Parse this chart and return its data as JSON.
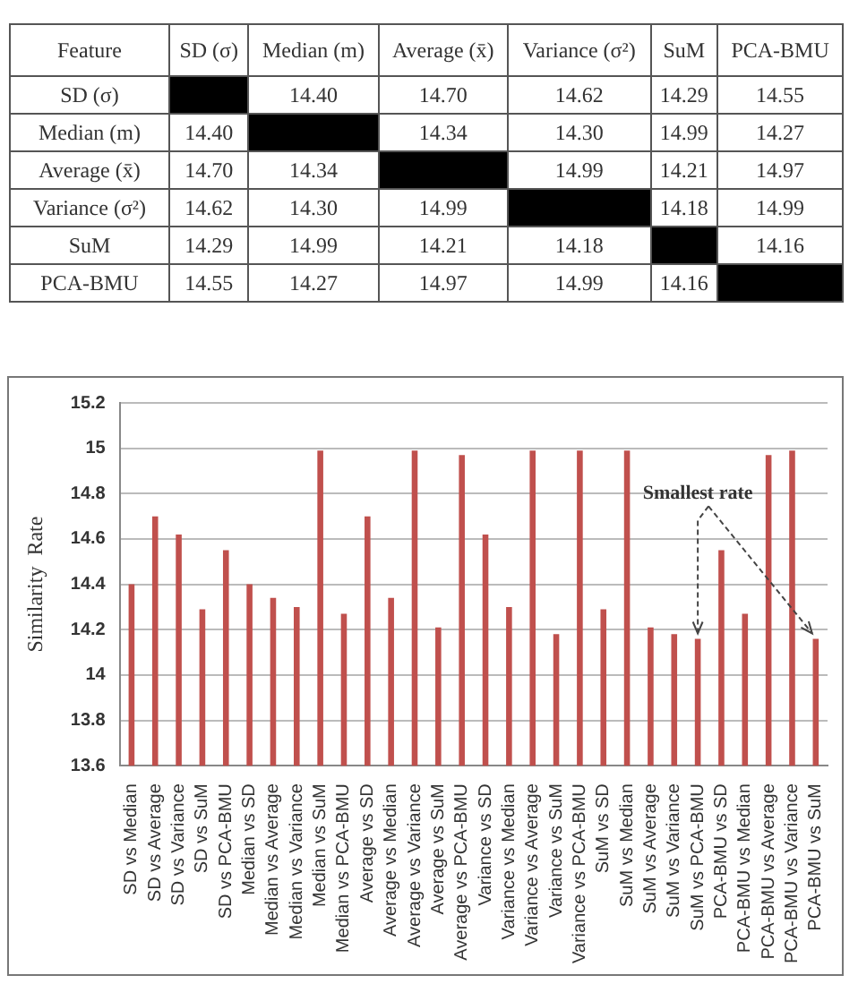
{
  "chart_data": [
    {
      "type": "heatmap",
      "ylabel": "Feature",
      "categories": [
        "SD (σ)",
        "Median (m)",
        "Average (x̄)",
        "Variance (σ²)",
        "SuM",
        "PCA-BMU"
      ],
      "y_categories": [
        "SD (σ)",
        "Median (m)",
        "Average (x̄)",
        "Variance (σ²)",
        "SuM",
        "PCA-BMU"
      ],
      "cells": [
        [
          null,
          14.4,
          14.7,
          14.62,
          14.29,
          14.55
        ],
        [
          14.4,
          null,
          14.34,
          14.3,
          14.99,
          14.27
        ],
        [
          14.7,
          14.34,
          null,
          14.99,
          14.21,
          14.97
        ],
        [
          14.62,
          14.3,
          14.99,
          null,
          14.18,
          14.99
        ],
        [
          14.29,
          14.99,
          14.21,
          14.18,
          null,
          14.16
        ],
        [
          14.55,
          14.27,
          14.97,
          14.99,
          14.16,
          null
        ]
      ],
      "cell_labels": [
        [
          null,
          "14.40",
          "14.70",
          "14.62",
          "14.29",
          "14.55"
        ],
        [
          "14.40",
          null,
          "14.34",
          "14.30",
          "14.99",
          "14.27"
        ],
        [
          "14.70",
          "14.34",
          null,
          "14.99",
          "14.21",
          "14.97"
        ],
        [
          "14.62",
          "14.30",
          "14.99",
          null,
          "14.18",
          "14.99"
        ],
        [
          "14.29",
          "14.99",
          "14.21",
          "14.18",
          null,
          "14.16"
        ],
        [
          "14.55",
          "14.27",
          "14.97",
          "14.99",
          "14.16",
          null
        ]
      ]
    },
    {
      "type": "bar",
      "ylabel": "Similarity  Rate",
      "color": "#c0504d",
      "categories": [
        "SD vs Median",
        "SD vs Average",
        "SD vs Variance",
        "SD vs SuM",
        "SD vs PCA-BMU",
        "Median vs SD",
        "Median vs Average",
        "Median vs Variance",
        "Median vs SuM",
        "Median vs PCA-BMU",
        "Average vs SD",
        "Average vs Median",
        "Average vs Variance",
        "Average vs SuM",
        "Average vs PCA-BMU",
        "Variance vs SD",
        "Variance vs Median",
        "Variance vs Average",
        "Variance vs SuM",
        "Variance vs PCA-BMU",
        "SuM vs SD",
        "SuM vs Median",
        "SuM vs Average",
        "SuM vs Variance",
        "SuM vs PCA-BMU",
        "PCA-BMU vs SD",
        "PCA-BMU vs Median",
        "PCA-BMU vs Average",
        "PCA-BMU vs Variance",
        "PCA-BMU vs SuM"
      ],
      "values": [
        14.4,
        14.7,
        14.62,
        14.29,
        14.55,
        14.4,
        14.34,
        14.3,
        14.99,
        14.27,
        14.7,
        14.34,
        14.99,
        14.21,
        14.97,
        14.62,
        14.3,
        14.99,
        14.18,
        14.99,
        14.29,
        14.99,
        14.21,
        14.18,
        14.16,
        14.55,
        14.27,
        14.97,
        14.99,
        14.16
      ],
      "ylim": [
        13.6,
        15.2
      ],
      "yticks": [
        13.6,
        13.8,
        14,
        14.2,
        14.4,
        14.6,
        14.8,
        15,
        15.2
      ],
      "grid": "y",
      "annotations": [
        {
          "text": "Smallest rate",
          "x": "SuM vs PCA-BMU",
          "y": 14.16
        }
      ]
    }
  ]
}
